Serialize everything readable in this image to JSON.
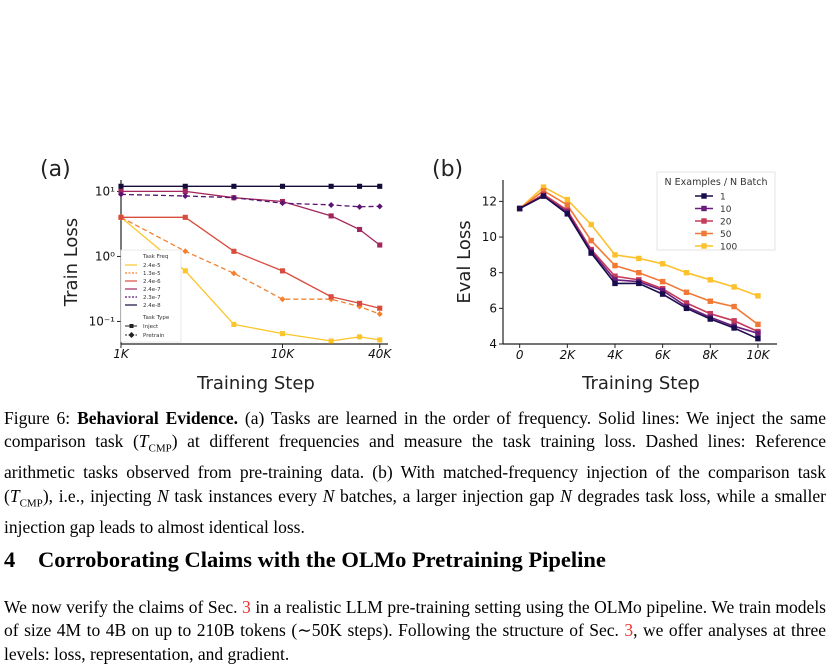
{
  "figure": {
    "panel_a_label": "(a)",
    "panel_b_label": "(b)"
  },
  "chart_data": [
    {
      "type": "line",
      "panel": "(a)",
      "xlabel": "Training Step",
      "ylabel": "Train Loss",
      "xscale": "log",
      "yscale": "log",
      "xlim": [
        1000,
        45000
      ],
      "ylim": [
        0.045,
        15
      ],
      "x_ticks": [
        1000,
        10000,
        40000
      ],
      "x_tick_labels": [
        "1K",
        "10K",
        "40K"
      ],
      "y_ticks": [
        0.1,
        1,
        10
      ],
      "y_tick_labels": [
        "10⁻¹",
        "10⁰",
        "10¹"
      ],
      "grid": false,
      "legend": {
        "placement": "lower-left",
        "freq_title": "Task Freq",
        "type_title": "Task Type",
        "type_entries": [
          "Inject",
          "Pretrain"
        ]
      },
      "series": [
        {
          "name": "2.4e-5",
          "color": "#fcc52a",
          "style": "solid",
          "marker": "square",
          "x": [
            1000,
            2500,
            5000,
            10000,
            20000,
            30000,
            40000
          ],
          "y": [
            4.0,
            0.6,
            0.09,
            0.065,
            0.05,
            0.058,
            0.052
          ]
        },
        {
          "name": "1.3e-5",
          "color": "#f4812f",
          "style": "dashed",
          "marker": "diamond",
          "x": [
            1000,
            2500,
            5000,
            10000,
            20000,
            30000,
            40000
          ],
          "y": [
            4.0,
            1.2,
            0.55,
            0.22,
            0.22,
            0.17,
            0.13
          ]
        },
        {
          "name": "2.4e-6",
          "color": "#d84c3e",
          "style": "solid",
          "marker": "square",
          "x": [
            1000,
            2500,
            5000,
            10000,
            20000,
            30000,
            40000
          ],
          "y": [
            4.0,
            4.0,
            1.2,
            0.6,
            0.24,
            0.19,
            0.16
          ]
        },
        {
          "name": "2.4e-7",
          "color": "#a3265d",
          "style": "solid",
          "marker": "square",
          "x": [
            1000,
            2500,
            5000,
            10000,
            20000,
            30000,
            40000
          ],
          "y": [
            10,
            10,
            8,
            7,
            4.2,
            2.6,
            1.5
          ]
        },
        {
          "name": "2.3e-7",
          "color": "#5a1572",
          "style": "dashed",
          "marker": "diamond",
          "x": [
            1000,
            2500,
            5000,
            10000,
            20000,
            30000,
            40000
          ],
          "y": [
            9,
            8.5,
            8,
            6.6,
            6.2,
            5.8,
            5.9
          ]
        },
        {
          "name": "2.4e-8",
          "color": "#140b3a",
          "style": "solid",
          "marker": "square",
          "x": [
            1000,
            2500,
            5000,
            10000,
            20000,
            30000,
            40000
          ],
          "y": [
            12,
            12,
            12,
            12,
            12,
            12,
            12
          ]
        }
      ]
    },
    {
      "type": "line",
      "panel": "(b)",
      "xlabel": "Training Step",
      "ylabel": "Eval Loss",
      "xlim": [
        -700,
        10800
      ],
      "ylim": [
        4,
        13.2
      ],
      "x_ticks": [
        0,
        2000,
        4000,
        6000,
        8000,
        10000
      ],
      "x_tick_labels": [
        "0",
        "2K",
        "4K",
        "6K",
        "8K",
        "10K"
      ],
      "y_ticks": [
        4,
        6,
        8,
        10,
        12
      ],
      "grid": false,
      "legend": {
        "placement": "top-right",
        "title": "N Examples / N Batch"
      },
      "x": [
        0,
        1000,
        2000,
        3000,
        4000,
        5000,
        6000,
        7000,
        8000,
        9000,
        10000
      ],
      "series": [
        {
          "name": "1",
          "color": "#1b0d4d",
          "values": [
            11.6,
            12.3,
            11.3,
            9.1,
            7.4,
            7.4,
            6.8,
            6.0,
            5.4,
            4.9,
            4.3
          ]
        },
        {
          "name": "10",
          "color": "#6b1d7d",
          "values": [
            11.6,
            12.3,
            11.4,
            9.2,
            7.6,
            7.5,
            7.0,
            6.1,
            5.5,
            5.0,
            4.6
          ]
        },
        {
          "name": "20",
          "color": "#c53b5a",
          "values": [
            11.6,
            12.4,
            11.5,
            9.3,
            7.8,
            7.6,
            7.1,
            6.3,
            5.7,
            5.3,
            4.7
          ]
        },
        {
          "name": "50",
          "color": "#f27835",
          "values": [
            11.6,
            12.6,
            11.8,
            9.8,
            8.4,
            8.0,
            7.5,
            6.9,
            6.4,
            6.1,
            5.1
          ]
        },
        {
          "name": "100",
          "color": "#fcc12c",
          "values": [
            11.6,
            12.8,
            12.1,
            10.7,
            9.0,
            8.8,
            8.5,
            8.0,
            7.6,
            7.2,
            6.7
          ]
        }
      ]
    }
  ],
  "caption": {
    "label": "Figure 6:",
    "bold": "Behavioral Evidence.",
    "p1": " (a) Tasks are learned in the order of frequency. Solid lines: We inject the same comparison task (",
    "t1": "T",
    "s1": "CMP",
    "p2": ") at different frequencies and measure the task training loss. Dashed lines: Reference arithmetic tasks observed from pre-training data. (b) With matched-frequency injection of the comparison task (",
    "t2": "T",
    "s2": "CMP",
    "p3": "), i.e., injecting ",
    "n1": "N",
    "p4": " task instances every ",
    "n2": "N",
    "p5": " batches, a larger injection gap ",
    "n3": "N",
    "p6": " degrades task loss, while a smaller injection gap leads to almost identical loss."
  },
  "section": {
    "number": "4",
    "title": "Corroborating Claims with the OLMo Pretraining Pipeline"
  },
  "paragraph": {
    "p1": "We now verify the claims of Sec. ",
    "ref1": "3",
    "p2": " in a realistic LLM pre-training setting using the OLMo pipeline. We train models of size 4M to 4B on up to 210B tokens (∼50K steps). Following the structure of Sec. ",
    "ref2": "3",
    "p3": ", we offer analyses at three levels: loss, representation, and gradient."
  }
}
